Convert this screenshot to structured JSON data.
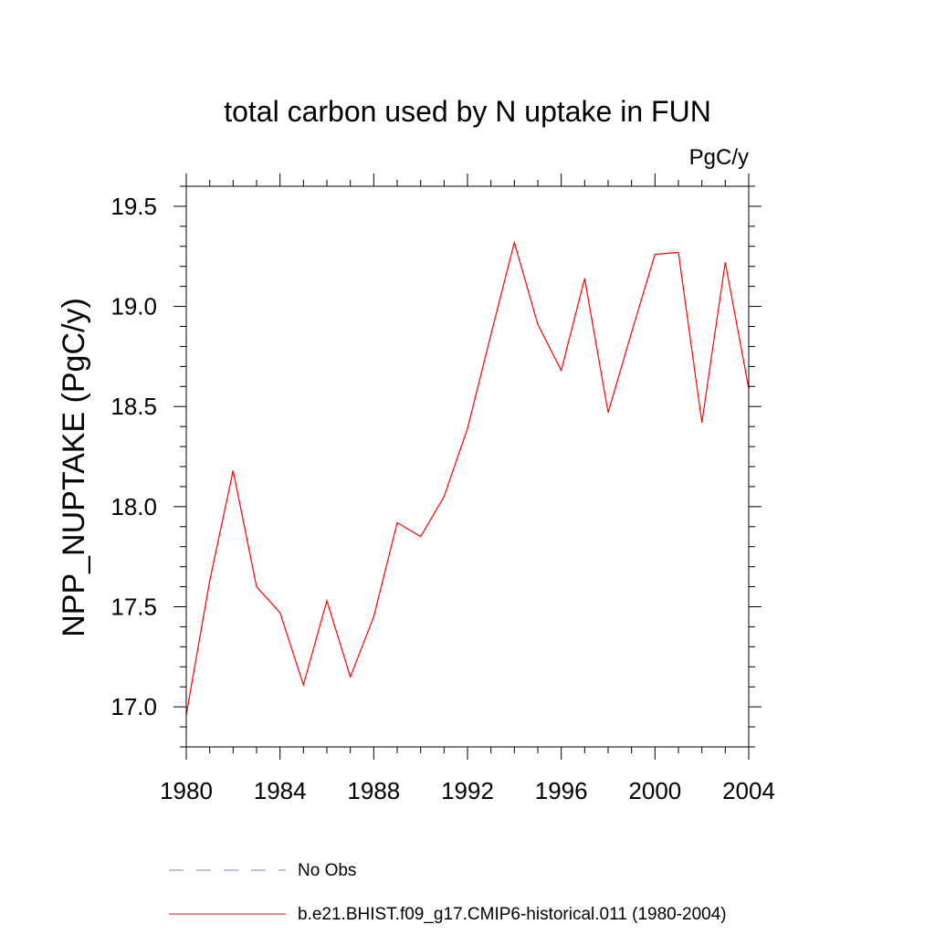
{
  "chart_data": {
    "type": "line",
    "title": "total carbon used by N uptake in FUN",
    "units_label": "PgC/y",
    "ylabel": "NPP_NUPTAKE  (PgC/y)",
    "xlabel": "",
    "xlim": [
      1980,
      2004
    ],
    "ylim": [
      16.8,
      19.6
    ],
    "x_ticks": [
      1980,
      1984,
      1988,
      1992,
      1996,
      2000,
      2004
    ],
    "x_tick_labels": [
      "1980",
      "1984",
      "1988",
      "1992",
      "1996",
      "2000",
      "2004"
    ],
    "y_ticks": [
      17.0,
      17.5,
      18.0,
      18.5,
      19.0,
      19.5
    ],
    "y_tick_labels": [
      "17.0",
      "17.5",
      "18.0",
      "18.5",
      "19.0",
      "19.5"
    ],
    "grid": false,
    "legend_placement": "bottom",
    "series": [
      {
        "name": "b.e21.BHIST.f09_g17.CMIP6-historical.011 (1980-2004)",
        "color": "#ff0000",
        "style": "solid",
        "x": [
          1980,
          1981,
          1982,
          1983,
          1984,
          1985,
          1986,
          1987,
          1988,
          1989,
          1990,
          1991,
          1992,
          1993,
          1994,
          1995,
          1996,
          1997,
          1998,
          1999,
          2000,
          2001,
          2002,
          2003,
          2004
        ],
        "values": [
          16.96,
          17.63,
          18.18,
          17.6,
          17.47,
          17.11,
          17.53,
          17.15,
          17.45,
          17.92,
          17.85,
          18.05,
          18.39,
          18.86,
          19.32,
          18.91,
          18.68,
          19.14,
          18.47,
          18.87,
          19.26,
          19.27,
          18.42,
          19.22,
          18.59
        ]
      }
    ],
    "legend": [
      {
        "label": "No Obs",
        "color": "#8080c0",
        "style": "dashed"
      },
      {
        "label": "b.e21.BHIST.f09_g17.CMIP6-historical.011 (1980-2004)",
        "color": "#ff0000",
        "style": "solid"
      }
    ]
  }
}
